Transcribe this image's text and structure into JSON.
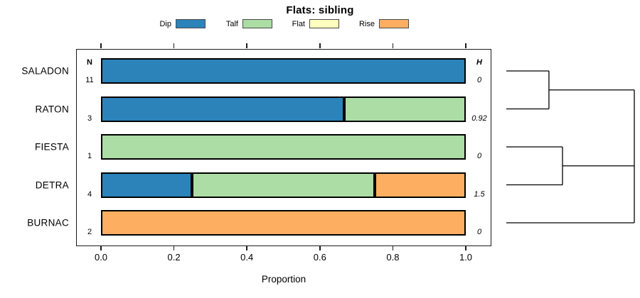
{
  "title": "Flats: sibling",
  "legend": {
    "items": [
      {
        "label": "Dip",
        "color": "#2B83BA"
      },
      {
        "label": "Talf",
        "color": "#ABDDA4"
      },
      {
        "label": "Flat",
        "color": "#FFFFBF"
      },
      {
        "label": "Rise",
        "color": "#FDAE61"
      }
    ]
  },
  "columns": {
    "n_header": "N",
    "h_header": "H"
  },
  "chart_data": {
    "type": "bar",
    "orientation": "horizontal",
    "stacked": true,
    "title": "Flats: sibling",
    "xlabel": "Proportion",
    "xlim": [
      0,
      1
    ],
    "xtick_values": [
      0.0,
      0.2,
      0.4,
      0.6,
      0.8,
      1.0
    ],
    "xtick_labels": [
      "0.0",
      "0.2",
      "0.4",
      "0.6",
      "0.8",
      "1.0"
    ],
    "grid": false,
    "legend_position": "top",
    "categories": [
      "SALADON",
      "RATON",
      "FIESTA",
      "DETRA",
      "BURNAC"
    ],
    "n_values": [
      "11",
      "3",
      "1",
      "4",
      "2"
    ],
    "h_values": [
      "0",
      "0.92",
      "0",
      "1.5",
      "0"
    ],
    "series": [
      {
        "name": "Dip",
        "color": "#2B83BA",
        "values": [
          1.0,
          0.667,
          0.0,
          0.25,
          0.0
        ]
      },
      {
        "name": "Talf",
        "color": "#ABDDA4",
        "values": [
          0.0,
          0.333,
          1.0,
          0.5,
          0.0
        ]
      },
      {
        "name": "Flat",
        "color": "#FFFFBF",
        "values": [
          0.0,
          0.0,
          0.0,
          0.0,
          0.0
        ]
      },
      {
        "name": "Rise",
        "color": "#FDAE61",
        "values": [
          0.0,
          0.0,
          0.0,
          0.25,
          1.0
        ]
      }
    ],
    "dendrogram": {
      "leaves": [
        "SALADON",
        "RATON",
        "FIESTA",
        "DETRA",
        "BURNAC"
      ],
      "merges": [
        {
          "id": "m1",
          "children": [
            "SALADON",
            "RATON"
          ],
          "height": 0.333
        },
        {
          "id": "m2",
          "children": [
            "FIESTA",
            "DETRA"
          ],
          "height": 0.439
        },
        {
          "id": "m3",
          "children": [
            "m1",
            "m2",
            "BURNAC"
          ],
          "height": 1.0
        }
      ]
    }
  },
  "colors": {
    "axis": "#1c1c1c",
    "bar_border": "#000000",
    "dendrogram_line": "#000000",
    "background": "#ffffff"
  }
}
